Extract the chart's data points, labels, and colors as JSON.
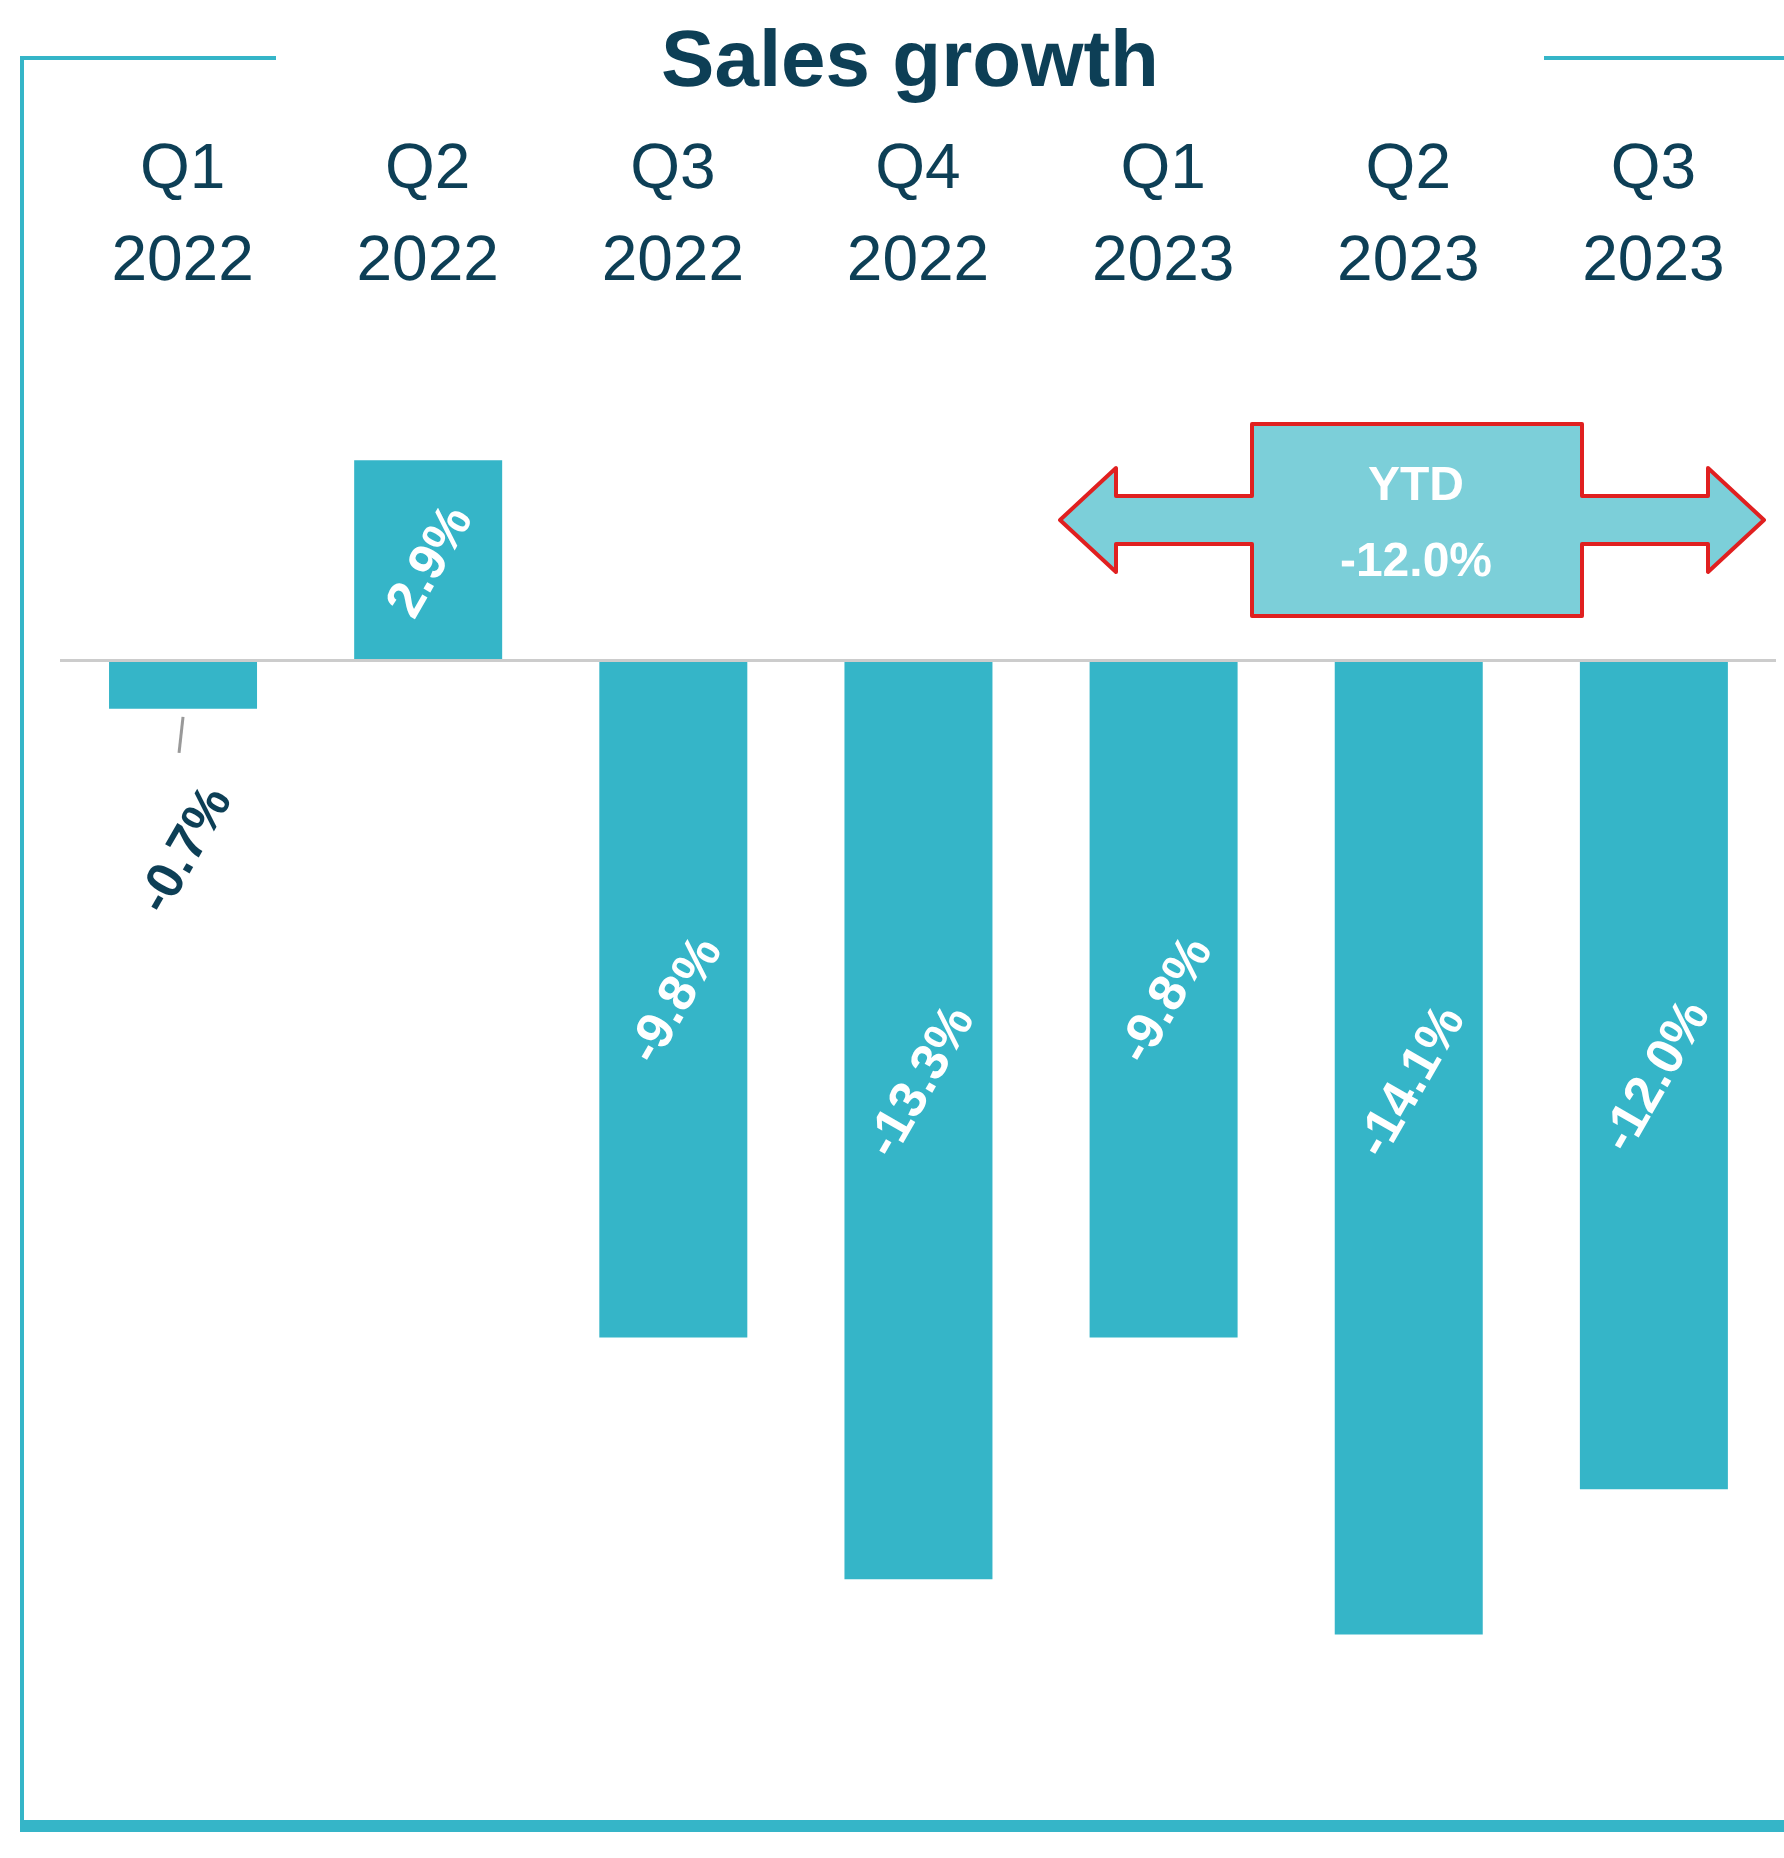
{
  "chart_data": {
    "type": "bar",
    "title": "Sales growth",
    "categories": [
      "Q1 2022",
      "Q2 2022",
      "Q3 2022",
      "Q4 2022",
      "Q1 2023",
      "Q2 2023",
      "Q3 2023"
    ],
    "values": [
      -0.7,
      2.9,
      -9.8,
      -13.3,
      -9.8,
      -14.1,
      -12.0
    ],
    "value_labels": [
      "-0.7%",
      "2.9%",
      "-9.8%",
      "-13.3%",
      "-9.8%",
      "-14.1%",
      "-12.0%"
    ],
    "color": "#35b5c8",
    "annotations": [
      "YTD -12.0%"
    ]
  }
}
